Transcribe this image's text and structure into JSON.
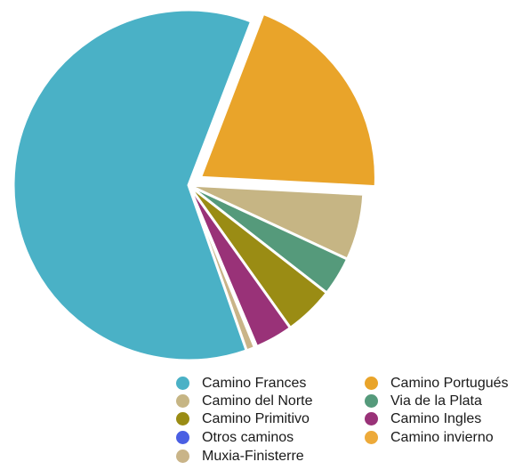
{
  "chart_data": {
    "type": "pie",
    "title": "",
    "start_angle_deg": 21,
    "direction": "clockwise",
    "exploded_slices": [
      "Camino Portugués"
    ],
    "slices": [
      {
        "name": "Camino Portugués",
        "value": 20.0,
        "color": "#E9A42A"
      },
      {
        "name": "Camino del Norte",
        "value": 6.1,
        "color": "#C6B584"
      },
      {
        "name": "Via de la Plata",
        "value": 3.6,
        "color": "#559A7B"
      },
      {
        "name": "Camino Primitivo",
        "value": 4.6,
        "color": "#9A8C14"
      },
      {
        "name": "Camino Ingles",
        "value": 3.5,
        "color": "#993278"
      },
      {
        "name": "Otros caminos",
        "value": 0.2,
        "color": "#4A5FE3"
      },
      {
        "name": "Muxia-Finisterre",
        "value": 0.8,
        "color": "#C9B488"
      },
      {
        "name": "Camino Frances",
        "value": 61.2,
        "color": "#4AB1C6"
      }
    ]
  },
  "legend": {
    "items": [
      {
        "label": "Camino Frances",
        "color": "#4AB1C6"
      },
      {
        "label": "Camino Portugués",
        "color": "#E9A42A"
      },
      {
        "label": "Camino del Norte",
        "color": "#C6B584"
      },
      {
        "label": "Via de la Plata",
        "color": "#559A7B"
      },
      {
        "label": "Camino Primitivo",
        "color": "#9A8C14"
      },
      {
        "label": "Camino Ingles",
        "color": "#993278"
      },
      {
        "label": "Otros caminos",
        "color": "#4A5FE3"
      },
      {
        "label": "Camino invierno",
        "color": "#EDAA3A"
      },
      {
        "label": "Muxia-Finisterre",
        "color": "#C9B488"
      }
    ]
  }
}
